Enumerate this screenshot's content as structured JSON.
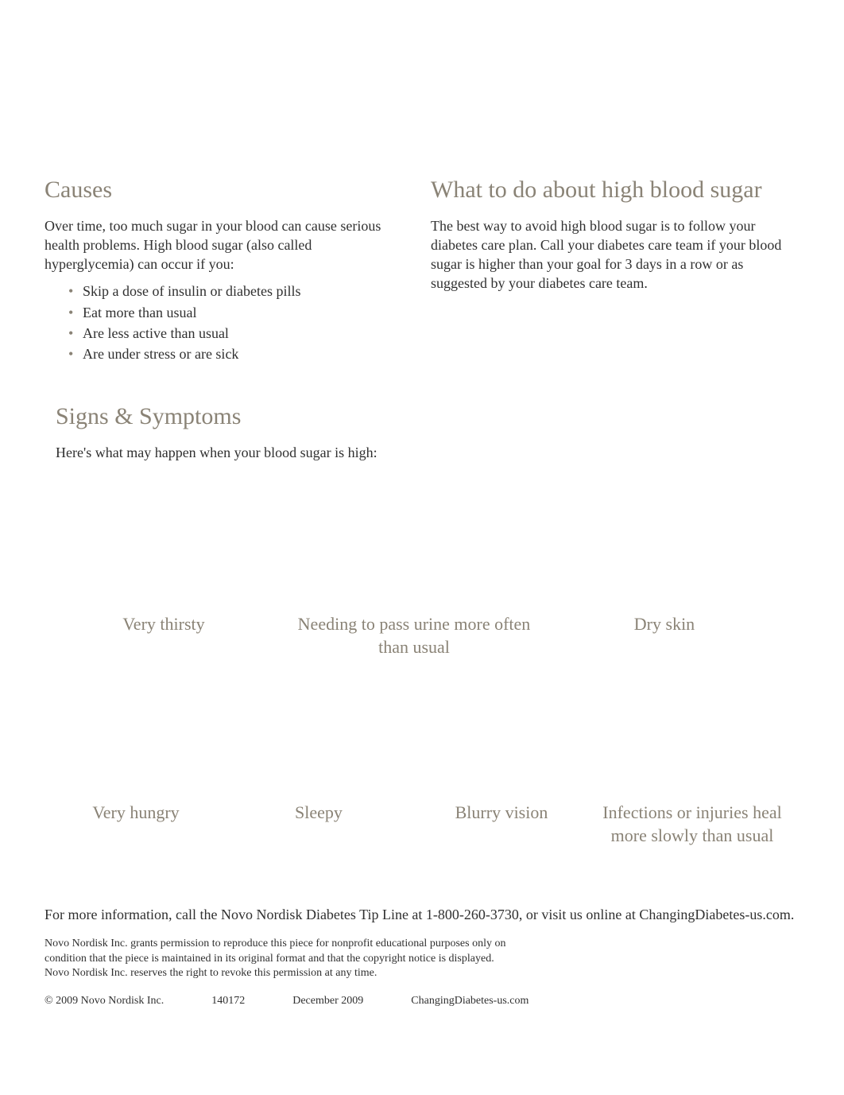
{
  "causes": {
    "heading": "Causes",
    "intro": "Over time, too much sugar in your blood can cause serious health problems. High blood sugar (also called hyperglycemia) can occur if you:",
    "bullets": [
      "Skip a dose of insulin or diabetes pills",
      "Eat more than usual",
      "Are less active than usual",
      "Are under stress or are sick"
    ]
  },
  "what_to_do": {
    "heading": "What to do about high blood sugar",
    "body": "The best way to avoid high blood sugar is to follow your diabetes care plan. Call your diabetes care team if your blood sugar is higher than your goal for 3 days in a row or as suggested by your diabetes care team."
  },
  "signs": {
    "heading": "Signs & Symptoms",
    "intro": "Here's what may happen when your blood sugar is high:",
    "row1": [
      "Very thirsty",
      "Needing to pass urine more often than usual",
      "Dry skin"
    ],
    "row2": [
      "Very hungry",
      "Sleepy",
      "Blurry vision",
      "Infections or injuries heal more slowly than usual"
    ]
  },
  "footer": {
    "more_info": "For more information, call the Novo Nordisk Diabetes Tip Line at 1-800-260-3730, or visit us online at  ChangingDiabetes-us.com.",
    "legal": "Novo Nordisk Inc. grants permission to reproduce this piece for nonprofit educational purposes only on condition that the piece is maintained in its original format and that the copyright notice is displayed. Novo Nordisk Inc. reserves the right to revoke this permission at any time.",
    "copyright": "© 2009 Novo Nordisk Inc.",
    "code": "140172",
    "date": "December 2009",
    "url": "ChangingDiabetes-us.com"
  },
  "style": {
    "heading_color": "#8a8376",
    "body_color": "#303030",
    "background": "#ffffff",
    "heading_fontsize": 30,
    "body_fontsize": 18,
    "symptom_fontsize": 22,
    "legal_fontsize": 14
  }
}
